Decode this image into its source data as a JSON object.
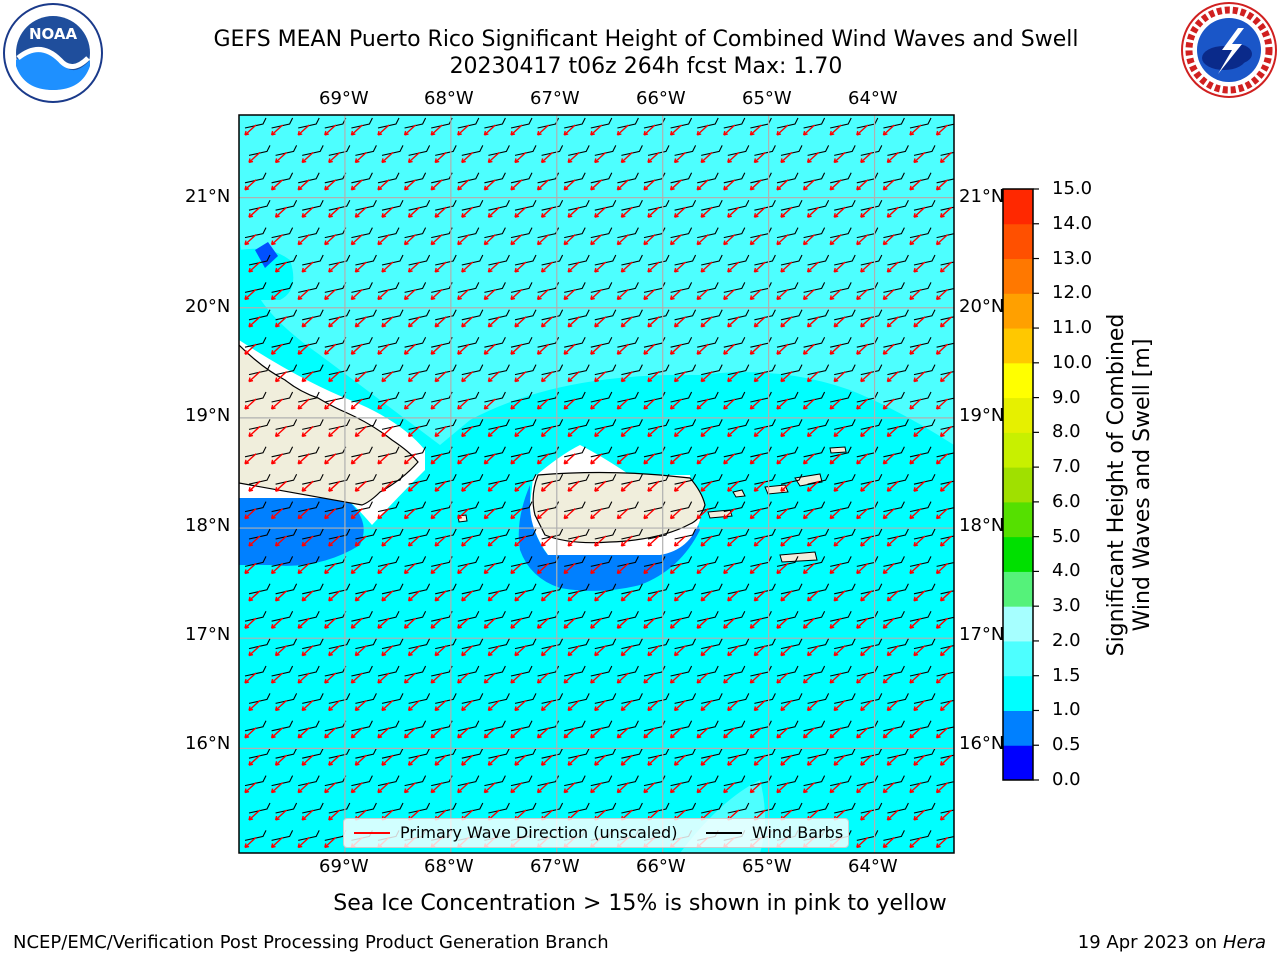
{
  "title": {
    "line1": "GEFS MEAN Puerto Rico Significant Height of Combined Wind Waves and Swell",
    "line2": "20230417 t06z 264h fcst   Max: 1.70"
  },
  "logos": {
    "left": {
      "icon": "noaa-logo-icon",
      "text": "NOAA",
      "ring_text": "NATIONAL OCEANIC AND ATMOSPHERIC ADMINISTRATION · U.S. DEPARTMENT OF COMMERCE"
    },
    "right": {
      "icon": "nws-logo-icon",
      "ring_text": "NATIONAL WEATHER SERVICE"
    }
  },
  "map": {
    "longitude_labels": [
      "69°W",
      "68°W",
      "67°W",
      "66°W",
      "65°W",
      "64°W"
    ],
    "latitude_labels": [
      "21°N",
      "20°N",
      "19°N",
      "18°N",
      "17°N",
      "16°N"
    ],
    "lon_range": [
      -70.0,
      -63.25
    ],
    "lat_range": [
      15.05,
      21.75
    ],
    "background_fill_m": "1.0-1.5",
    "colors": {
      "land": "#f0eedc",
      "ocean_1_0_1_5": "#00ffff",
      "ocean_1_5_2_0": "#4dffff",
      "ocean_0_5_1_0": "#0080ff",
      "ocean_0_0_0_5": "#0000ff",
      "gridline": "#b0b0b0",
      "wave_arrow": "#ff0000",
      "wind_barb": "#000000"
    }
  },
  "legend": {
    "wave_direction": "Primary Wave Direction (unscaled)",
    "wind_barbs": "Wind Barbs"
  },
  "colorbar": {
    "label_line1": "Significant Height of Combined",
    "label_line2": "Wind Waves and Swell [m]",
    "ticks": [
      "15.0",
      "14.0",
      "13.0",
      "12.0",
      "11.0",
      "10.0",
      "9.0",
      "8.0",
      "7.0",
      "6.0",
      "5.0",
      "4.0",
      "3.0",
      "2.0",
      "1.5",
      "1.0",
      "0.5",
      "0.0"
    ],
    "colors": [
      "#0000ff",
      "#0080ff",
      "#00ffff",
      "#4dffff",
      "#a6ffff",
      "#55f27a",
      "#00e000",
      "#55e000",
      "#a0e000",
      "#c8f000",
      "#e6f000",
      "#ffff00",
      "#ffc800",
      "#ffa000",
      "#ff7800",
      "#ff5000",
      "#ff2800",
      "#ff0000"
    ]
  },
  "ice_note": "Sea Ice Concentration > 15% is shown in pink to yellow",
  "footer": {
    "left": "NCEP/EMC/Verification Post Processing Product Generation Branch",
    "right_prefix": "19 Apr 2023 on ",
    "right_host": "Hera"
  }
}
